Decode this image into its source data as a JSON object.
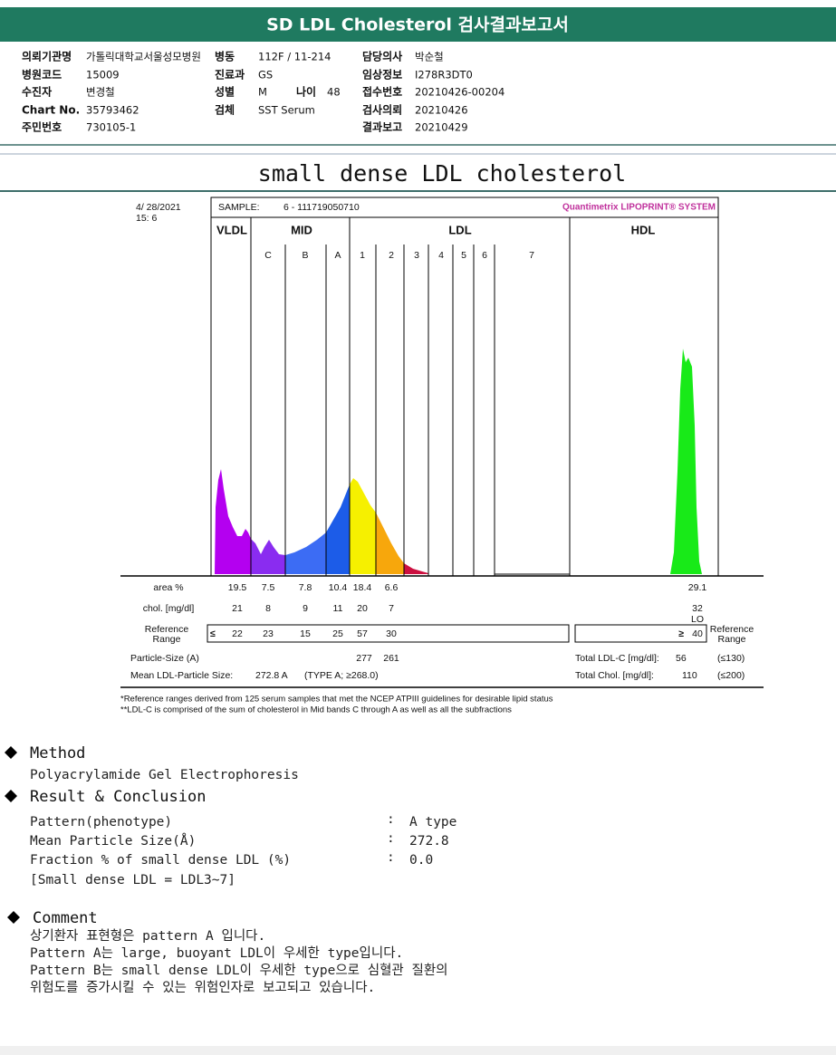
{
  "header": {
    "title": "SD LDL Cholesterol 검사결과보고서"
  },
  "patient": {
    "fields": [
      {
        "label": "의뢰기관명",
        "value": "가톨릭대학교서울성모병원"
      },
      {
        "label": "병동",
        "value": "112F / 11-214"
      },
      {
        "label": "담당의사",
        "value": "박순철"
      },
      {
        "label": "병원코드",
        "value": "15009"
      },
      {
        "label": "진료과",
        "value": "GS"
      },
      {
        "label": "임상정보",
        "value": "I278R3DT0"
      },
      {
        "label": "수진자",
        "value": "변경철"
      },
      {
        "label": "성별",
        "value": "M"
      },
      {
        "label": "나이",
        "value": "48"
      },
      {
        "label": "접수번호",
        "value": "20210426-00204"
      },
      {
        "label": "Chart No.",
        "value": "35793462"
      },
      {
        "label": "검체",
        "value": "SST Serum"
      },
      {
        "label": "검사의뢰",
        "value": "20210426"
      },
      {
        "label": "주민번호",
        "value": "730105-1"
      },
      {
        "label": "결과보고",
        "value": "20210429"
      }
    ]
  },
  "section": {
    "title": "small dense LDL cholesterol"
  },
  "report": {
    "date": "4/ 28/2021",
    "time": "15:  6",
    "sample_label": "SAMPLE:",
    "sample_id": "6 - 111719050710",
    "brand": "Quantimetrix LIPOPRINT® SYSTEM",
    "groups": [
      "VLDL",
      "MID",
      "LDL",
      "HDL"
    ],
    "bands": [
      "C",
      "B",
      "A",
      "1",
      "2",
      "3",
      "4",
      "5",
      "6",
      "7"
    ],
    "area_label": "area %",
    "area": [
      "19.5",
      "7.5",
      "7.8",
      "10.4",
      "18.4",
      "6.6"
    ],
    "hdl_area": "29.1",
    "chol_label": "chol. [mg/dl]",
    "chol": [
      "21",
      "8",
      "9",
      "11",
      "20",
      "7"
    ],
    "hdl_chol": "32",
    "hdl_flag": "LO",
    "reference_label": [
      "Reference",
      "Range"
    ],
    "reference_prefix": "≤",
    "reference": [
      "22",
      "23",
      "15",
      "25",
      "57",
      "30"
    ],
    "hdl_reference_prefix": "≥",
    "hdl_reference": "40",
    "reference_label_right": [
      "Reference",
      "Range"
    ],
    "particle_size_label": "Particle-Size (A)",
    "particle_sizes": [
      "277",
      "261"
    ],
    "mean_label": "Mean LDL-Particle Size:",
    "mean_value": "272.8 A",
    "mean_type": "(TYPE A; ≥268.0)",
    "total_ldl_label": "Total LDL-C [mg/dl]:",
    "total_ldl": "56",
    "total_ldl_ref": "(≤130)",
    "total_chol_label": "Total Chol. [mg/dl]:",
    "total_chol": "110",
    "total_chol_ref": "(≤200)",
    "footnotes": [
      "*Reference ranges derived from 125 serum samples that met the NCEP ATPIII guidelines for desirable lipid status",
      "**LDL-C is comprised of the sum of cholesterol in Mid bands C through A as well as all the subfractions"
    ]
  },
  "method": {
    "title": "Method",
    "text": "Polyacrylamide Gel Electrophoresis"
  },
  "result": {
    "title": "Result & Conclusion",
    "separator": ":",
    "rows": [
      {
        "label": "Pattern(phenotype)",
        "value": "A type"
      },
      {
        "label": "Mean Particle Size(Å)",
        "value": "272.8"
      },
      {
        "label": "Fraction % of small dense LDL (%)",
        "value": "0.0"
      }
    ],
    "note": "[Small dense LDL = LDL3~7]"
  },
  "comment": {
    "title": "Comment",
    "lines": [
      "상기환자 표현형은 pattern A 입니다.",
      "Pattern A는 large, buoyant LDL이 우세한 type입니다.",
      "Pattern B는 small dense LDL이 우세한 type으로 심혈관 질환의",
      "위험도를 증가시킬 수 있는 위험인자로 보고되고 있습니다."
    ]
  }
}
